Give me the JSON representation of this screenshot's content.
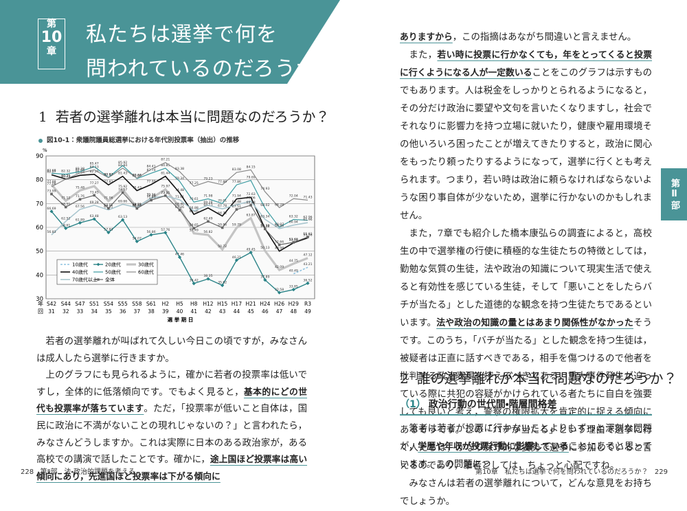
{
  "header": {
    "chapter_prefix": "第",
    "chapter_number": "10",
    "chapter_suffix": "章",
    "title_lines": [
      "私たちは選挙で何を",
      "問われているのだろうか？"
    ]
  },
  "left_page": {
    "section": {
      "number": "1",
      "title": "若者の選挙離れは本当に問題なのだろうか？"
    },
    "figure_caption": "図10-1：衆議院議員総選挙における年代別投票率（抽出）の推移",
    "paragraphs": [
      [
        "若者の選挙離れが叫ばれて久しい今日この頃ですが，みなさんは成人したら選挙に行きますか。"
      ],
      [
        "上のグラフにも見られるように，確かに若者の投票率は低いですし，全体的に低落傾向です。でもよく見ると，",
        {
          "text": "基本的にどの世代も投票率が落ちています",
          "bold": true
        },
        "。ただ，「投票率が低いこと自体は，国民に政治に不満がないことの現れじゃないの？」と言われたら，みなさんどうしますか。これは実際に日本のある政治家が，ある高校での講演で話したことです。確かに，",
        {
          "text": "途上国ほど投票率は高い傾向にあり，先進国ほど投票率は下がる傾向に",
          "bold": true
        }
      ]
    ],
    "page_number": "228",
    "running_head": "第Ⅱ部　法・政治的課題を考える"
  },
  "chart_data": {
    "type": "line",
    "y_unit": "%",
    "x_top_label": "年",
    "x_bottom_label": "回",
    "xlabel": "選 挙 期 日",
    "categories": [
      "S42",
      "S44",
      "S47",
      "S51",
      "S54",
      "S55",
      "S58",
      "S61",
      "H2",
      "H5",
      "H8",
      "H12",
      "H15",
      "H17",
      "H21",
      "H24",
      "H26",
      "H29",
      "R3"
    ],
    "election_numbers": [
      31,
      32,
      33,
      34,
      35,
      36,
      37,
      38,
      39,
      40,
      41,
      42,
      43,
      44,
      45,
      46,
      47,
      48,
      49
    ],
    "ylim": [
      30,
      90
    ],
    "yticks": [
      30,
      40,
      50,
      60,
      70,
      80,
      90
    ],
    "grid": true,
    "series": [
      {
        "name": "10歳代",
        "color": "#8fc3e0",
        "dash": true,
        "line_width": 1.6,
        "values": [
          null,
          null,
          null,
          null,
          null,
          null,
          null,
          null,
          null,
          null,
          null,
          null,
          null,
          null,
          null,
          null,
          null,
          40.49,
          43.21
        ]
      },
      {
        "name": "20歳代",
        "color": "#2a8387",
        "marker": "diamond",
        "line_width": 1.4,
        "values": [
          66.69,
          59.61,
          61.89,
          63.48,
          57.83,
          63.13,
          54.07,
          56.86,
          57.76,
          47.46,
          36.42,
          38.35,
          35.62,
          46.21,
          49.45,
          37.89,
          32.58,
          33.85,
          36.52
        ]
      },
      {
        "name": "30歳代",
        "color": "#c4c4c4",
        "line_width": 3.2,
        "values": [
          77.88,
          71.12,
          75.48,
          77.27,
          71.06,
          75.92,
          68.28,
          72.15,
          75.97,
          68.46,
          57.49,
          56.82,
          50.72,
          59.79,
          63.87,
          50.13,
          42.09,
          44.75,
          47.12
        ]
      },
      {
        "name": "40歳代",
        "color": "#111111",
        "line_width": 1.6,
        "values": [
          82.07,
          80.29,
          81.84,
          82.26,
          77.82,
          81.43,
          75.43,
          77.99,
          81.44,
          74.48,
          65.46,
          68.13,
          64.72,
          71.94,
          72.63,
          59.38,
          49.98,
          53.52,
          55.56
        ]
      },
      {
        "name": "50歳代",
        "color": "#3a9aa0",
        "line_width": 1.2,
        "values": [
          82.68,
          82.32,
          83.38,
          85.47,
          80.97,
          85.92,
          80.46,
          82.74,
          84.85,
          79.34,
          70.61,
          71.98,
          70.01,
          77.86,
          79.69,
          68.02,
          60.07,
          63.32,
          62.96
        ]
      },
      {
        "name": "60歳代",
        "color": "#8a8a8a",
        "line_width": 1.2,
        "values": [
          77.08,
          80.23,
          82.84,
          84.13,
          80.87,
          84.84,
          80.66,
          84.41,
          87.21,
          83.38,
          77.25,
          79.23,
          77.89,
          83.08,
          84.15,
          74.93,
          68.28,
          72.04,
          71.43
        ]
      },
      {
        "name": "70歳代以上",
        "color": "#a9c6cf",
        "line_width": 1.6,
        "values": [
          56.83,
          62.52,
          67.56,
          69.28,
          67.31,
          69.66,
          68.31,
          72.36,
          73.21,
          71.61,
          66.88,
          69.28,
          67.78,
          69.48,
          71.06,
          63.34,
          59.46,
          60.94,
          61.96
        ]
      },
      {
        "name": "全体",
        "color": "#666666",
        "marker": "square",
        "line_width": 1.2,
        "values": [
          73.99,
          68.51,
          71.76,
          73.45,
          68.01,
          74.57,
          67.94,
          71.41,
          73.31,
          67.26,
          59.65,
          62.49,
          59.86,
          67.51,
          69.28,
          59.32,
          52.66,
          53.68,
          55.93
        ]
      }
    ]
  },
  "right_page": {
    "paragraphs": [
      [
        {
          "text": "ありますから",
          "bold": true
        },
        "，この指摘はあながち間違いと言えません。"
      ],
      [
        "また，",
        {
          "text": "若い時に投票に行かなくても，年をとってくると投票に行くようになる人が一定数いる",
          "bold": true
        },
        "ことをこのグラフは示すものでもあります。人は税金をしっかりとられるようになると，その分だけ政治に要望や文句を言いたくなりますし，社会でそれなりに影響力を持つ立場に就いたり，健康や雇用環境その他いろいろ困ったことが増えてきたりすると，政治に関心をもったり頼ったりするようになって，選挙に行くとも考えられます。つまり，若い時は政治に頼らなければならないような困り事自体が少ないため，選挙に行かないのかもしれません。"
      ],
      [
        "また，7章でも紹介した橋本康弘らの調査によると，高校生の中で選挙権の行使に積極的な生徒たちの特徴としては，勤勉な気質の生徒，法や政治の知識について現実生活で使えると有効性を感じている生徒，そして「悪いことをしたらバチが当たる」とした道徳的な観念を持つ生徒たちであるといいます。",
        {
          "text": "法や政治の知識の量とはあまり関係性がなかった",
          "bold": true
        },
        "そうです。このうち，「バチが当たる」とした観念を持つ生徒は，被疑者は正直に話すべきである，相手を傷つけるので他者を批判する政治表現を控えるべきである，重大事件発生が迫っている際に共犯の容疑がかけられている者たちに自白を強要しても良いと考え，警察の権限拡大を肯定的に捉える傾向にあるそうです。この「バチが当たる」という理由で選挙に行く人たちは，かなり保守的な姿勢で選挙に参加していると言えるのであり，筆者としては，ちょっと心配ですね。"
      ],
      [
        "みなさんは若者の選挙離れについて，どんな意見をお持ちでしょうか。"
      ]
    ],
    "section": {
      "number": "2",
      "title": "誰の選挙離れが本当に問題なのだろうか？"
    },
    "subsection": {
      "number": "（1）",
      "title": "政治行動の世代間・階層間格差"
    },
    "paragraphs_2": [
      [
        "筆者は若者が投票に行かないことよりもずっと深刻な問題が，",
        {
          "text": "学歴や年収が投票行動に影響している",
          "bold": true
        },
        "ことにあると思っています。この問題につ"
      ]
    ],
    "side_tab": "第Ⅱ部",
    "running_head": "第10章　私たちは選挙で何を問われているのだろうか？",
    "page_number": "229"
  }
}
